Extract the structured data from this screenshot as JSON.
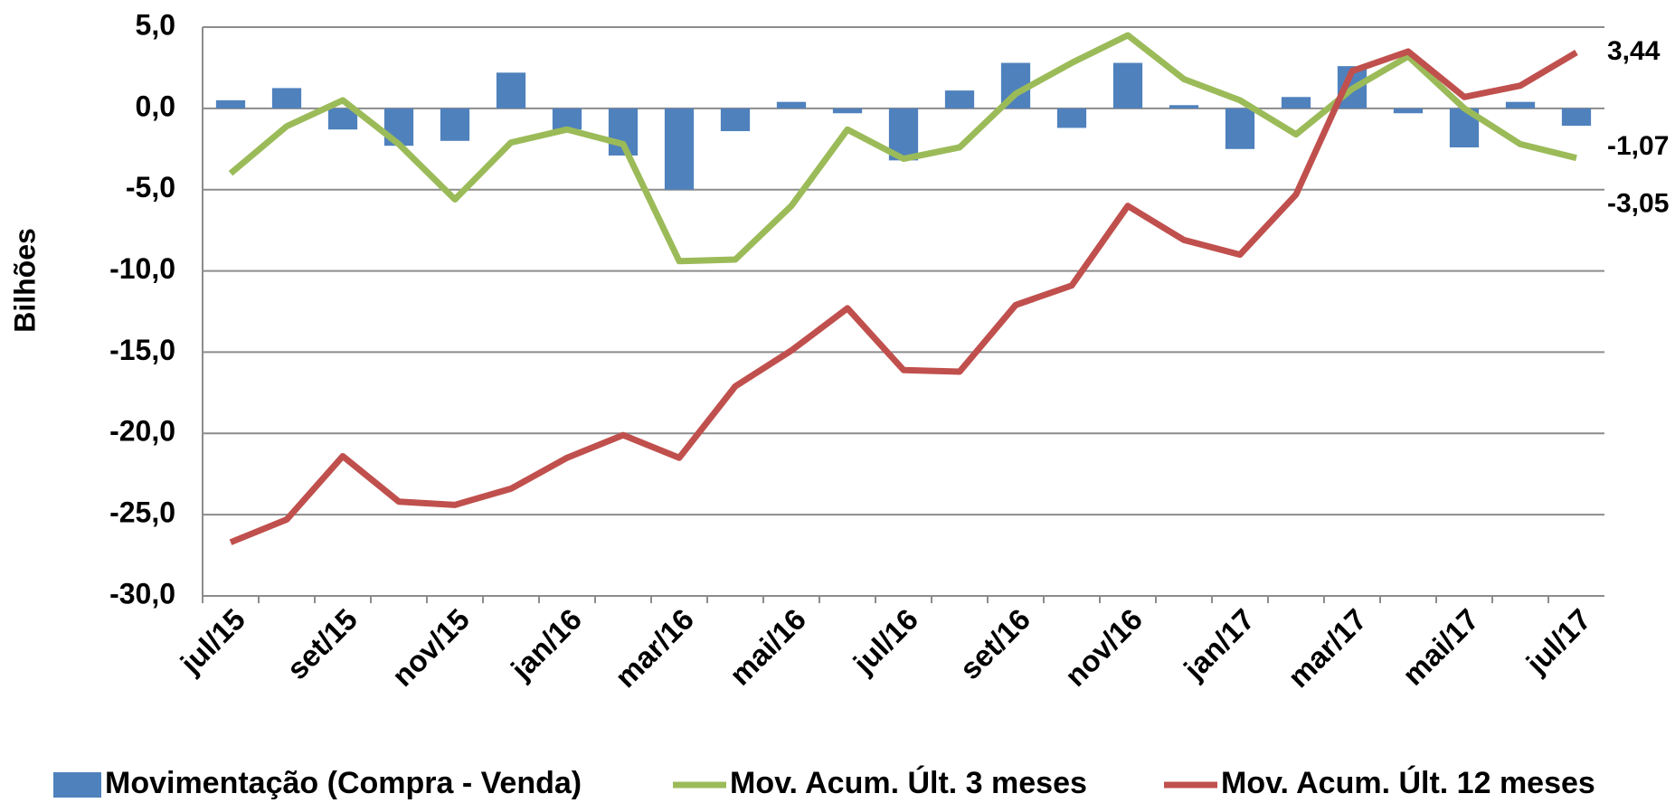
{
  "chart_data": {
    "type": "bar-line",
    "y_label": "Bilhões",
    "categories": [
      "jul/15",
      null,
      "set/15",
      null,
      "nov/15",
      null,
      "jan/16",
      null,
      "mar/16",
      null,
      "mai/16",
      null,
      "jul/16",
      null,
      "set/16",
      null,
      "nov/16",
      null,
      "jan/17",
      null,
      "mar/17",
      null,
      "mai/17",
      null,
      "jul/17"
    ],
    "series": [
      {
        "name": "Movimentação (Compra - Venda)",
        "type": "bar",
        "color": "#4f81bd",
        "values": [
          0.5,
          1.25,
          -1.3,
          -2.3,
          -2.0,
          2.2,
          -1.3,
          -2.9,
          -5.0,
          -1.4,
          0.4,
          -0.3,
          -3.2,
          1.1,
          2.8,
          -1.2,
          2.8,
          0.2,
          -2.5,
          0.7,
          2.6,
          -0.3,
          -2.4,
          0.4,
          -1.07
        ],
        "value_labels": [
          null,
          null,
          null,
          null,
          null,
          null,
          null,
          null,
          null,
          null,
          null,
          null,
          null,
          null,
          null,
          null,
          null,
          null,
          null,
          null,
          null,
          null,
          null,
          null,
          "-1,07"
        ]
      },
      {
        "name": "Mov. Acum. Últ. 3 meses",
        "type": "line",
        "color": "#9bbb59",
        "values": [
          -4.0,
          -1.1,
          0.5,
          -2.2,
          -5.6,
          -2.1,
          -1.3,
          -2.2,
          -9.4,
          -9.3,
          -6.0,
          -1.3,
          -3.1,
          -2.4,
          0.9,
          2.8,
          4.5,
          1.8,
          0.5,
          -1.6,
          1.2,
          3.2,
          0.0,
          -2.2,
          -3.05
        ],
        "value_labels": [
          null,
          null,
          null,
          null,
          null,
          null,
          null,
          null,
          null,
          null,
          null,
          null,
          null,
          null,
          null,
          null,
          null,
          null,
          null,
          null,
          null,
          null,
          null,
          null,
          "-3,05"
        ]
      },
      {
        "name": "Mov. Acum. Últ. 12 meses",
        "type": "line",
        "color": "#c0504d",
        "values": [
          -26.7,
          -25.3,
          -21.4,
          -24.2,
          -24.4,
          -23.4,
          -21.5,
          -20.1,
          -21.5,
          -17.1,
          -14.9,
          -12.3,
          -16.1,
          -16.2,
          -12.1,
          -10.9,
          -6.0,
          -8.1,
          -9.0,
          -5.3,
          2.3,
          3.5,
          0.7,
          1.4,
          3.44
        ],
        "value_labels": [
          null,
          null,
          null,
          null,
          null,
          null,
          null,
          null,
          null,
          null,
          null,
          null,
          null,
          null,
          null,
          null,
          null,
          null,
          null,
          null,
          null,
          null,
          null,
          null,
          "3,44"
        ]
      }
    ],
    "ylim": [
      -30,
      5
    ],
    "yticks": [
      {
        "value": -30,
        "label": "-30,0"
      },
      {
        "value": -25,
        "label": "-25,0"
      },
      {
        "value": -20,
        "label": "-20,0"
      },
      {
        "value": -15,
        "label": "-15,0"
      },
      {
        "value": -10,
        "label": "-10,0"
      },
      {
        "value": -5,
        "label": "-5,0"
      },
      {
        "value": 0,
        "label": "0,0"
      },
      {
        "value": 5,
        "label": "5,0"
      }
    ],
    "grid": true,
    "legend": "bottom"
  }
}
